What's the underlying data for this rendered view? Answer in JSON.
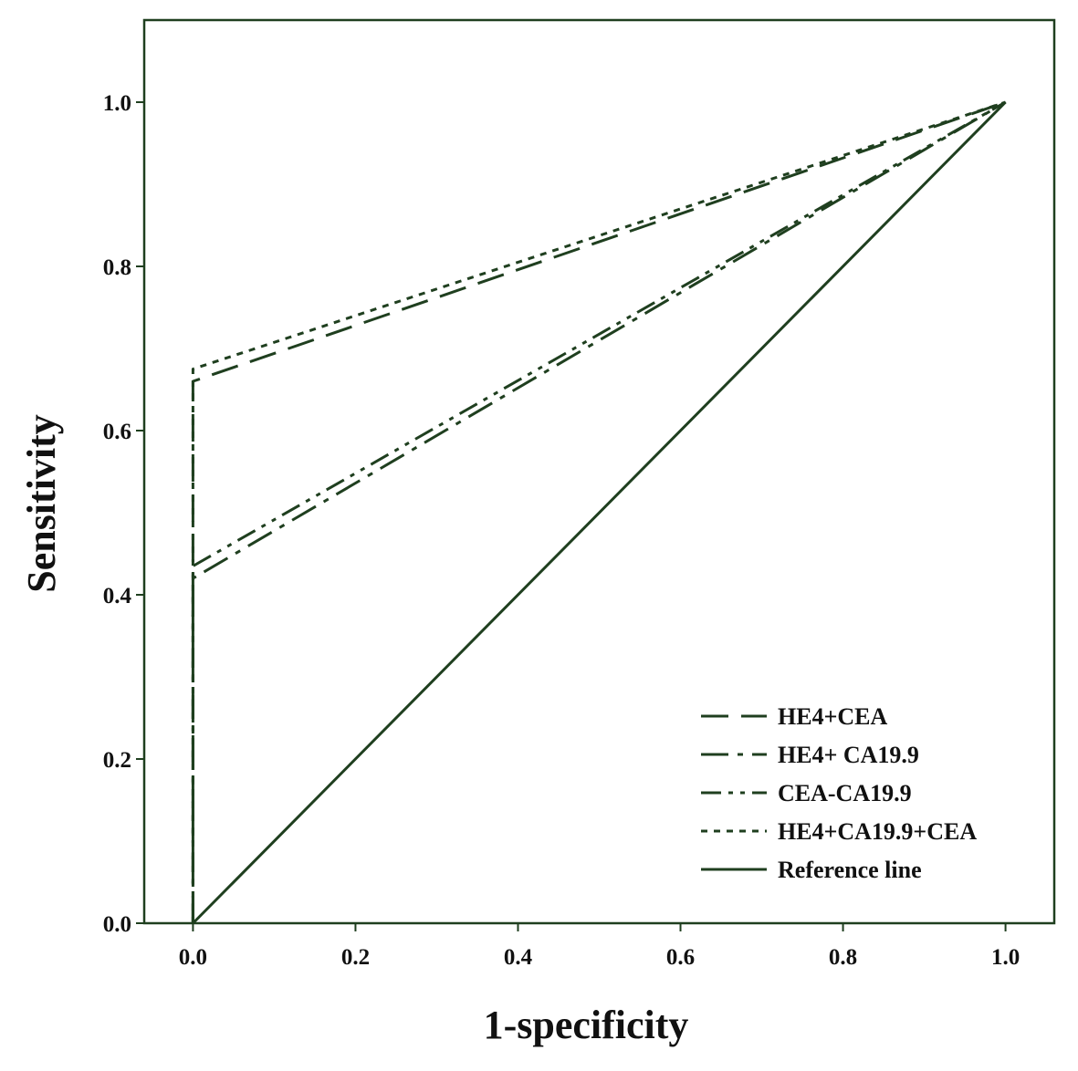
{
  "chart_data": {
    "type": "line",
    "title": "",
    "xlabel": "1-specificity",
    "ylabel": "Sensitivity",
    "xlim": [
      -0.06,
      1.06
    ],
    "ylim": [
      0.0,
      1.1
    ],
    "x_ticks": [
      0.0,
      0.2,
      0.4,
      0.6,
      0.8,
      1.0
    ],
    "y_ticks": [
      0.0,
      0.2,
      0.4,
      0.6,
      0.8,
      1.0
    ],
    "x_tick_labels": [
      "0.0",
      "0.2",
      "0.4",
      "0.6",
      "0.8",
      "1.0"
    ],
    "y_tick_labels": [
      "0.0",
      "0.2",
      "0.4",
      "0.6",
      "0.8",
      "1.0"
    ],
    "grid": false,
    "legend_position": "bottom-right",
    "line_color": "#1f3f1f",
    "frame_color": "#1f3f1f",
    "series": [
      {
        "name": "HE4+CEA",
        "dash": "long-dash",
        "x": [
          0.0,
          0.0,
          1.0
        ],
        "y": [
          0.0,
          0.66,
          1.0
        ]
      },
      {
        "name": "HE4+ CA19.9",
        "dash": "dash-dot",
        "x": [
          0.0,
          0.0,
          1.0
        ],
        "y": [
          0.0,
          0.42,
          1.0
        ]
      },
      {
        "name": "CEA-CA19.9",
        "dash": "dash-dot-dot",
        "x": [
          0.0,
          0.0,
          1.0
        ],
        "y": [
          0.0,
          0.435,
          1.0
        ]
      },
      {
        "name": "HE4+CA19.9+CEA",
        "dash": "dotted",
        "x": [
          0.0,
          0.0,
          1.0
        ],
        "y": [
          0.0,
          0.675,
          1.0
        ]
      },
      {
        "name": "Reference line",
        "dash": "solid",
        "x": [
          0.0,
          1.0
        ],
        "y": [
          0.0,
          1.0
        ]
      }
    ]
  }
}
